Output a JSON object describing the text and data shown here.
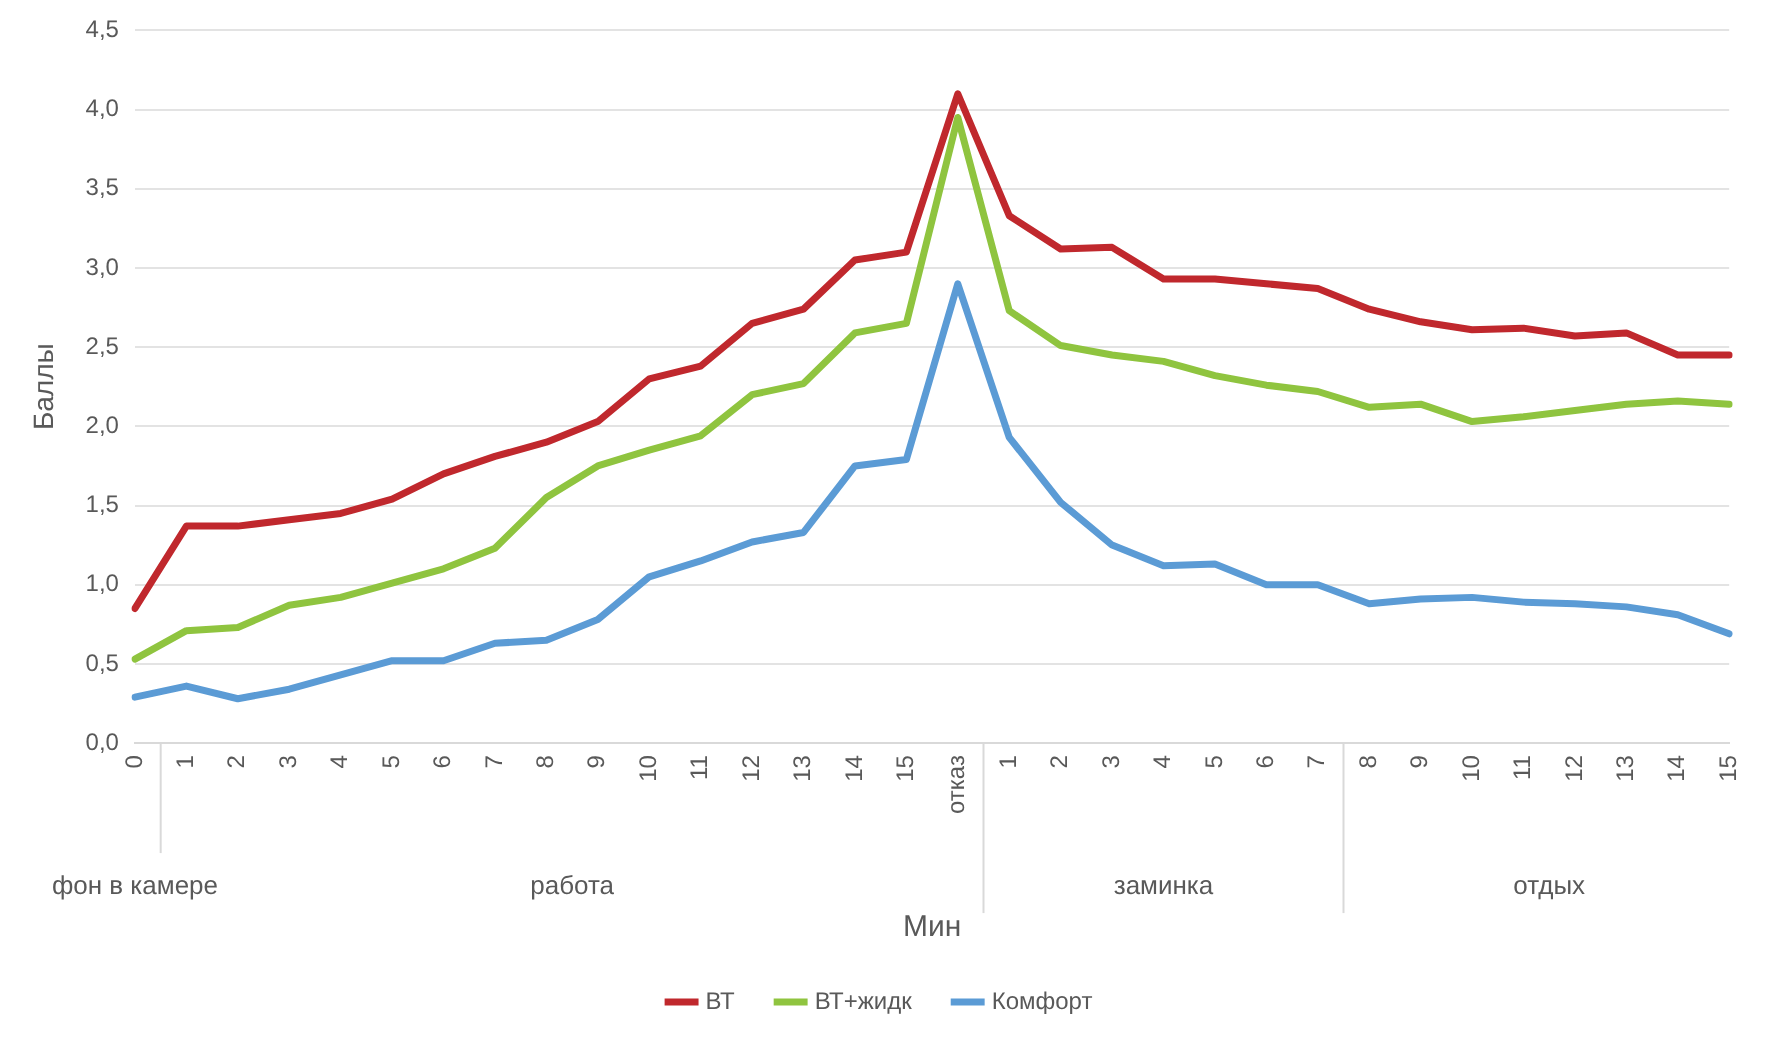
{
  "chart_data": {
    "type": "line",
    "xlabel": "Мин",
    "ylabel": "Баллы",
    "categories": [
      "0",
      "1",
      "2",
      "3",
      "4",
      "5",
      "6",
      "7",
      "8",
      "9",
      "10",
      "11",
      "12",
      "13",
      "14",
      "15",
      "отказ",
      "1",
      "2",
      "3",
      "4",
      "5",
      "6",
      "7",
      "8",
      "9",
      "10",
      "11",
      "12",
      "13",
      "14",
      "15"
    ],
    "series": [
      {
        "name": "ВТ",
        "color": "#c0282d",
        "values": [
          0.85,
          1.37,
          1.37,
          1.41,
          1.45,
          1.54,
          1.7,
          1.81,
          1.9,
          2.03,
          2.3,
          2.38,
          2.65,
          2.74,
          3.05,
          3.1,
          4.1,
          3.33,
          3.12,
          3.13,
          2.93,
          2.93,
          2.9,
          2.87,
          2.74,
          2.66,
          2.61,
          2.62,
          2.57,
          2.59,
          2.45,
          2.45
        ]
      },
      {
        "name": "ВТ+жидк",
        "color": "#8fc43f",
        "values": [
          0.53,
          0.71,
          0.73,
          0.87,
          0.92,
          1.01,
          1.1,
          1.23,
          1.55,
          1.75,
          1.85,
          1.94,
          2.2,
          2.27,
          2.59,
          2.65,
          3.95,
          2.73,
          2.51,
          2.45,
          2.41,
          2.32,
          2.26,
          2.22,
          2.12,
          2.14,
          2.03,
          2.06,
          2.1,
          2.14,
          2.16,
          2.14
        ]
      },
      {
        "name": "Комфорт",
        "color": "#5b9bd5",
        "values": [
          0.29,
          0.36,
          0.28,
          0.34,
          0.43,
          0.52,
          0.52,
          0.63,
          0.65,
          0.78,
          1.05,
          1.15,
          1.27,
          1.33,
          1.75,
          1.79,
          2.9,
          1.93,
          1.52,
          1.25,
          1.12,
          1.13,
          1.0,
          1.0,
          0.88,
          0.91,
          0.92,
          0.89,
          0.88,
          0.86,
          0.81,
          0.69
        ]
      }
    ],
    "annotations": [
      "фон в камере",
      "работа",
      "заминка",
      "отдых"
    ],
    "ylim": [
      0,
      4.5
    ],
    "yticks": [
      {
        "value": 0,
        "label": "0,0"
      },
      {
        "value": 0.5,
        "label": "0,5"
      },
      {
        "value": 1,
        "label": "1,0"
      },
      {
        "value": 1.5,
        "label": "1,5"
      },
      {
        "value": 2,
        "label": "2,0"
      },
      {
        "value": 2.5,
        "label": "2,5"
      },
      {
        "value": 3,
        "label": "3,0"
      },
      {
        "value": 3.5,
        "label": "3,5"
      },
      {
        "value": 4,
        "label": "4,0"
      },
      {
        "value": 4.5,
        "label": "4,5"
      }
    ],
    "grid": "y",
    "legend": "bottom",
    "marker": "none",
    "line_style": "solid"
  }
}
